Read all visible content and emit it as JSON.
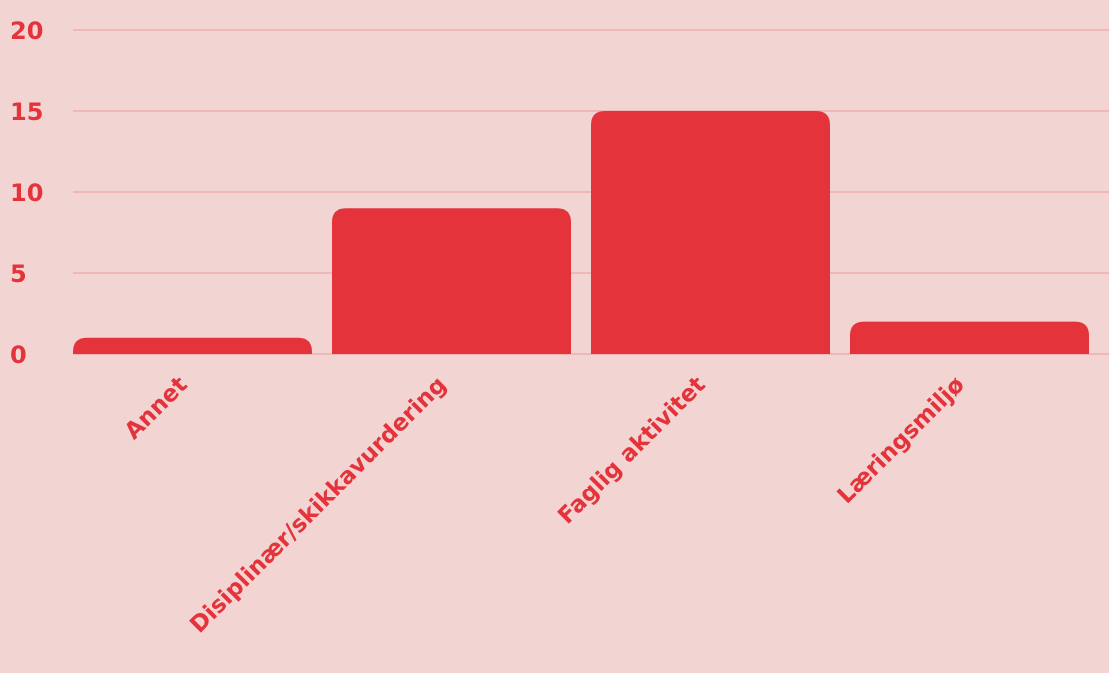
{
  "chart_data": {
    "type": "bar",
    "title": "",
    "xlabel": "",
    "ylabel": "",
    "categories": [
      "Annet",
      "Disiplinær/skikkavurdering",
      "Faglig aktivitet",
      "Læringsmiljø"
    ],
    "values": [
      1,
      9,
      15,
      2
    ],
    "ylim": [
      0,
      20
    ],
    "yticks": [
      "0",
      "5",
      "10",
      "15",
      "20"
    ],
    "grid": true,
    "legend": "none"
  },
  "colors": {
    "background": "#f2d5d2",
    "bar": "#e5333b",
    "grid": "#eaa7a4",
    "text": "#e5333b"
  }
}
